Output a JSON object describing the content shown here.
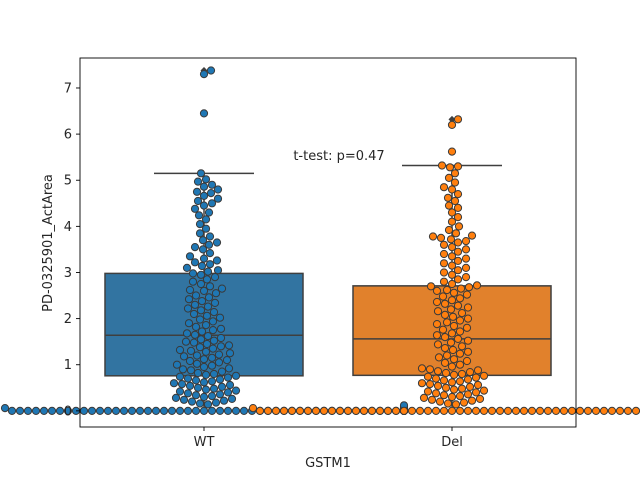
{
  "chart_data": {
    "type": "box+swarm",
    "title": "",
    "xlabel": "GSTM1",
    "ylabel": "PD-0325901_ActArea",
    "ylim": [
      -0.35,
      7.65
    ],
    "yticks": [
      0,
      1,
      2,
      3,
      4,
      5,
      6,
      7
    ],
    "annotation": "t-test: p=0.47",
    "groups": [
      {
        "name": "WT",
        "color": "#3274a1",
        "point_color": "#1f77b4",
        "box": {
          "q1": 0.76,
          "median": 1.64,
          "q3": 2.98,
          "whisker_low": 0.0,
          "whisker_high": 5.15
        },
        "outliers": [
          6.45,
          7.3,
          7.38
        ],
        "points": [
          7.38,
          7.3,
          6.45,
          5.15,
          5.02,
          4.97,
          4.9,
          4.86,
          4.8,
          4.75,
          4.72,
          4.66,
          4.6,
          4.55,
          4.5,
          4.45,
          4.38,
          4.3,
          4.24,
          4.15,
          4.05,
          3.95,
          3.85,
          3.78,
          3.7,
          3.65,
          3.6,
          3.55,
          3.5,
          3.42,
          3.35,
          3.3,
          3.26,
          3.22,
          3.18,
          3.14,
          3.1,
          3.05,
          3.02,
          2.98,
          2.95,
          2.9,
          2.85,
          2.8,
          2.75,
          2.7,
          2.65,
          2.62,
          2.6,
          2.55,
          2.5,
          2.46,
          2.42,
          2.38,
          2.34,
          2.3,
          2.26,
          2.22,
          2.18,
          2.14,
          2.1,
          2.06,
          2.02,
          1.98,
          1.94,
          1.9,
          1.86,
          1.82,
          1.78,
          1.75,
          1.72,
          1.68,
          1.65,
          1.62,
          1.58,
          1.55,
          1.52,
          1.5,
          1.48,
          1.45,
          1.42,
          1.4,
          1.38,
          1.35,
          1.32,
          1.3,
          1.28,
          1.25,
          1.22,
          1.2,
          1.18,
          1.15,
          1.12,
          1.1,
          1.08,
          1.05,
          1.02,
          1.0,
          0.98,
          0.95,
          0.92,
          0.9,
          0.88,
          0.85,
          0.82,
          0.8,
          0.78,
          0.76,
          0.74,
          0.72,
          0.7,
          0.68,
          0.66,
          0.64,
          0.62,
          0.6,
          0.58,
          0.56,
          0.54,
          0.52,
          0.5,
          0.48,
          0.46,
          0.44,
          0.42,
          0.4,
          0.38,
          0.36,
          0.34,
          0.32,
          0.3,
          0.28,
          0.26,
          0.24,
          0.22,
          0.2,
          0.18,
          0.16,
          0.14,
          0.12,
          0.1,
          0.08,
          0.06,
          0.05,
          0.04,
          0.03,
          0.02,
          0.02,
          0.01,
          0.01,
          0.01,
          0.0,
          0.0,
          0.0,
          0.0,
          0.0,
          0.0,
          0.0,
          0.0,
          0.0,
          0.0,
          0.0,
          0.0,
          0.0,
          0.0,
          0.0,
          0.0,
          0.0,
          0.0,
          0.0,
          0.0,
          0.0,
          0.0,
          0.0,
          0.0,
          0.0,
          0.0,
          0.0,
          0.0,
          0.0,
          0.0,
          0.0,
          0.0,
          0.0,
          0.0,
          0.0,
          0.0,
          0.0,
          0.0,
          0.0,
          0.0,
          0.0,
          0.0,
          0.0,
          0.0,
          0.0,
          0.0,
          0.0,
          0.0,
          0.0,
          0.0,
          0.0,
          0.0,
          0.0,
          0.0,
          0.0,
          0.0,
          0.0,
          0.0,
          0.0,
          0.0,
          0.0,
          0.0,
          0.0
        ]
      },
      {
        "name": "Del",
        "color": "#e1812c",
        "point_color": "#ff7f0e",
        "box": {
          "q1": 0.77,
          "median": 1.56,
          "q3": 2.71,
          "whisker_low": 0.0,
          "whisker_high": 5.32
        },
        "outliers": [
          5.62,
          6.2,
          6.32
        ],
        "points": [
          6.32,
          6.2,
          5.62,
          5.32,
          5.3,
          5.28,
          5.15,
          5.05,
          4.95,
          4.85,
          4.8,
          4.7,
          4.62,
          4.55,
          4.45,
          4.4,
          4.3,
          4.2,
          4.1,
          4.0,
          3.92,
          3.85,
          3.8,
          3.78,
          3.75,
          3.72,
          3.68,
          3.65,
          3.6,
          3.55,
          3.5,
          3.45,
          3.4,
          3.35,
          3.3,
          3.25,
          3.2,
          3.15,
          3.1,
          3.05,
          3.0,
          2.95,
          2.9,
          2.85,
          2.8,
          2.75,
          2.72,
          2.7,
          2.68,
          2.65,
          2.62,
          2.6,
          2.56,
          2.52,
          2.48,
          2.44,
          2.4,
          2.36,
          2.32,
          2.28,
          2.24,
          2.2,
          2.16,
          2.12,
          2.08,
          2.04,
          2.0,
          1.96,
          1.92,
          1.88,
          1.84,
          1.8,
          1.76,
          1.72,
          1.68,
          1.64,
          1.6,
          1.56,
          1.52,
          1.48,
          1.44,
          1.4,
          1.36,
          1.32,
          1.28,
          1.24,
          1.2,
          1.16,
          1.12,
          1.08,
          1.04,
          1.0,
          0.96,
          0.92,
          0.9,
          0.88,
          0.86,
          0.84,
          0.82,
          0.8,
          0.78,
          0.76,
          0.74,
          0.72,
          0.7,
          0.68,
          0.66,
          0.64,
          0.62,
          0.6,
          0.58,
          0.56,
          0.54,
          0.52,
          0.5,
          0.48,
          0.46,
          0.44,
          0.42,
          0.4,
          0.38,
          0.36,
          0.34,
          0.32,
          0.3,
          0.28,
          0.26,
          0.24,
          0.22,
          0.2,
          0.18,
          0.16,
          0.14,
          0.12,
          0.1,
          0.08,
          0.06,
          0.05,
          0.04,
          0.03,
          0.02,
          0.02,
          0.01,
          0.01,
          0.01,
          0.0,
          0.0,
          0.0,
          0.0,
          0.0,
          0.0,
          0.0,
          0.0,
          0.0,
          0.0,
          0.0,
          0.0,
          0.0,
          0.0,
          0.0,
          0.0,
          0.0,
          0.0,
          0.0,
          0.0,
          0.0,
          0.0,
          0.0,
          0.0,
          0.0,
          0.0,
          0.0,
          0.0,
          0.0,
          0.0,
          0.0,
          0.0,
          0.0,
          0.0,
          0.0,
          0.0,
          0.0,
          0.0,
          0.0,
          0.0,
          0.0,
          0.0,
          0.0,
          0.0,
          0.0,
          0.0,
          0.0,
          0.0,
          0.0,
          0.0,
          0.0,
          0.0,
          0.0,
          0.0,
          0.0,
          0.0,
          0.0,
          0.0,
          0.0,
          0.0,
          0.0,
          0.0,
          0.0,
          0.0,
          0.0,
          0.0,
          0.0,
          0.0,
          0.0,
          0.0,
          0.0,
          0.0,
          0.0,
          0.0,
          0.0,
          0.0
        ]
      }
    ]
  }
}
